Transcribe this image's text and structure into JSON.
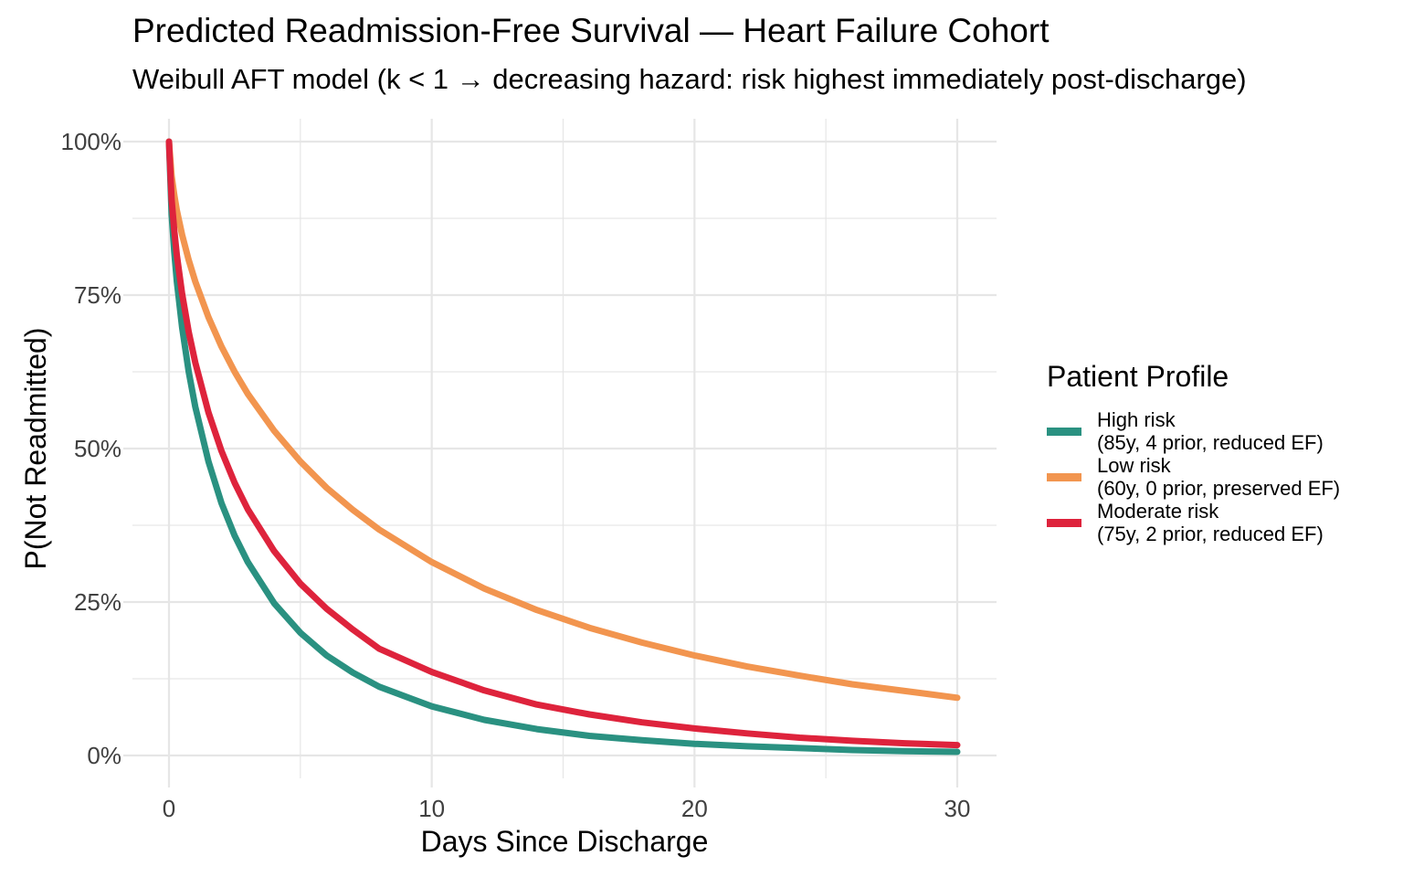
{
  "chart_data": {
    "type": "line",
    "title": "Predicted Readmission-Free Survival — Heart Failure Cohort",
    "subtitle": "Weibull AFT model (k < 1 → decreasing hazard: risk highest immediately post-discharge)",
    "xlabel": "Days Since Discharge",
    "ylabel": "P(Not Readmitted)",
    "xlim": [
      0,
      30
    ],
    "ylim": [
      0,
      1
    ],
    "grid": true,
    "legend": {
      "title": "Patient Profile",
      "position": "right"
    },
    "x_ticks": [
      {
        "value": 0,
        "label": "0"
      },
      {
        "value": 10,
        "label": "10"
      },
      {
        "value": 20,
        "label": "20"
      },
      {
        "value": 30,
        "label": "30"
      }
    ],
    "y_ticks": [
      {
        "value": 0,
        "label": "0%"
      },
      {
        "value": 0.25,
        "label": "25%"
      },
      {
        "value": 0.5,
        "label": "50%"
      },
      {
        "value": 0.75,
        "label": "75%"
      },
      {
        "value": 1,
        "label": "100%"
      }
    ],
    "x_minor_gridlines": [
      5,
      15,
      25
    ],
    "y_minor_gridlines": [
      0.125,
      0.375,
      0.625,
      0.875
    ],
    "x": [
      0,
      0.1,
      0.2,
      0.3,
      0.5,
      0.75,
      1,
      1.5,
      2,
      2.5,
      3,
      4,
      5,
      6,
      7,
      8,
      10,
      12,
      14,
      16,
      18,
      20,
      22,
      24,
      26,
      28,
      30
    ],
    "series": [
      {
        "name": "High risk",
        "detail": "(85y, 4 prior, reduced EF)",
        "color": "#2a9181",
        "values": [
          1,
          0.881,
          0.82,
          0.772,
          0.697,
          0.625,
          0.568,
          0.479,
          0.411,
          0.358,
          0.315,
          0.248,
          0.2,
          0.163,
          0.135,
          0.112,
          0.08,
          0.058,
          0.043,
          0.032,
          0.025,
          0.019,
          0.015,
          0.012,
          0.009,
          0.007,
          0.006
        ]
      },
      {
        "name": "Low risk",
        "detail": "(60y, 0 prior, preserved EF)",
        "color": "#f2954f",
        "values": [
          1,
          0.944,
          0.913,
          0.888,
          0.848,
          0.807,
          0.772,
          0.714,
          0.666,
          0.625,
          0.589,
          0.529,
          0.479,
          0.436,
          0.4,
          0.368,
          0.315,
          0.272,
          0.237,
          0.208,
          0.184,
          0.163,
          0.145,
          0.13,
          0.116,
          0.105,
          0.094
        ]
      },
      {
        "name": "Moderate risk",
        "detail": "(75y, 2 prior, reduced EF)",
        "color": "#de233c",
        "values": [
          1,
          0.905,
          0.855,
          0.815,
          0.752,
          0.69,
          0.64,
          0.559,
          0.496,
          0.444,
          0.401,
          0.333,
          0.28,
          0.239,
          0.205,
          0.174,
          0.136,
          0.106,
          0.083,
          0.067,
          0.054,
          0.044,
          0.036,
          0.029,
          0.024,
          0.02,
          0.017
        ]
      }
    ],
    "style": {
      "grid_color": "#e6e6e6",
      "tick_label_color": "#404040",
      "text_color": "#000000",
      "line_width": 7
    }
  }
}
